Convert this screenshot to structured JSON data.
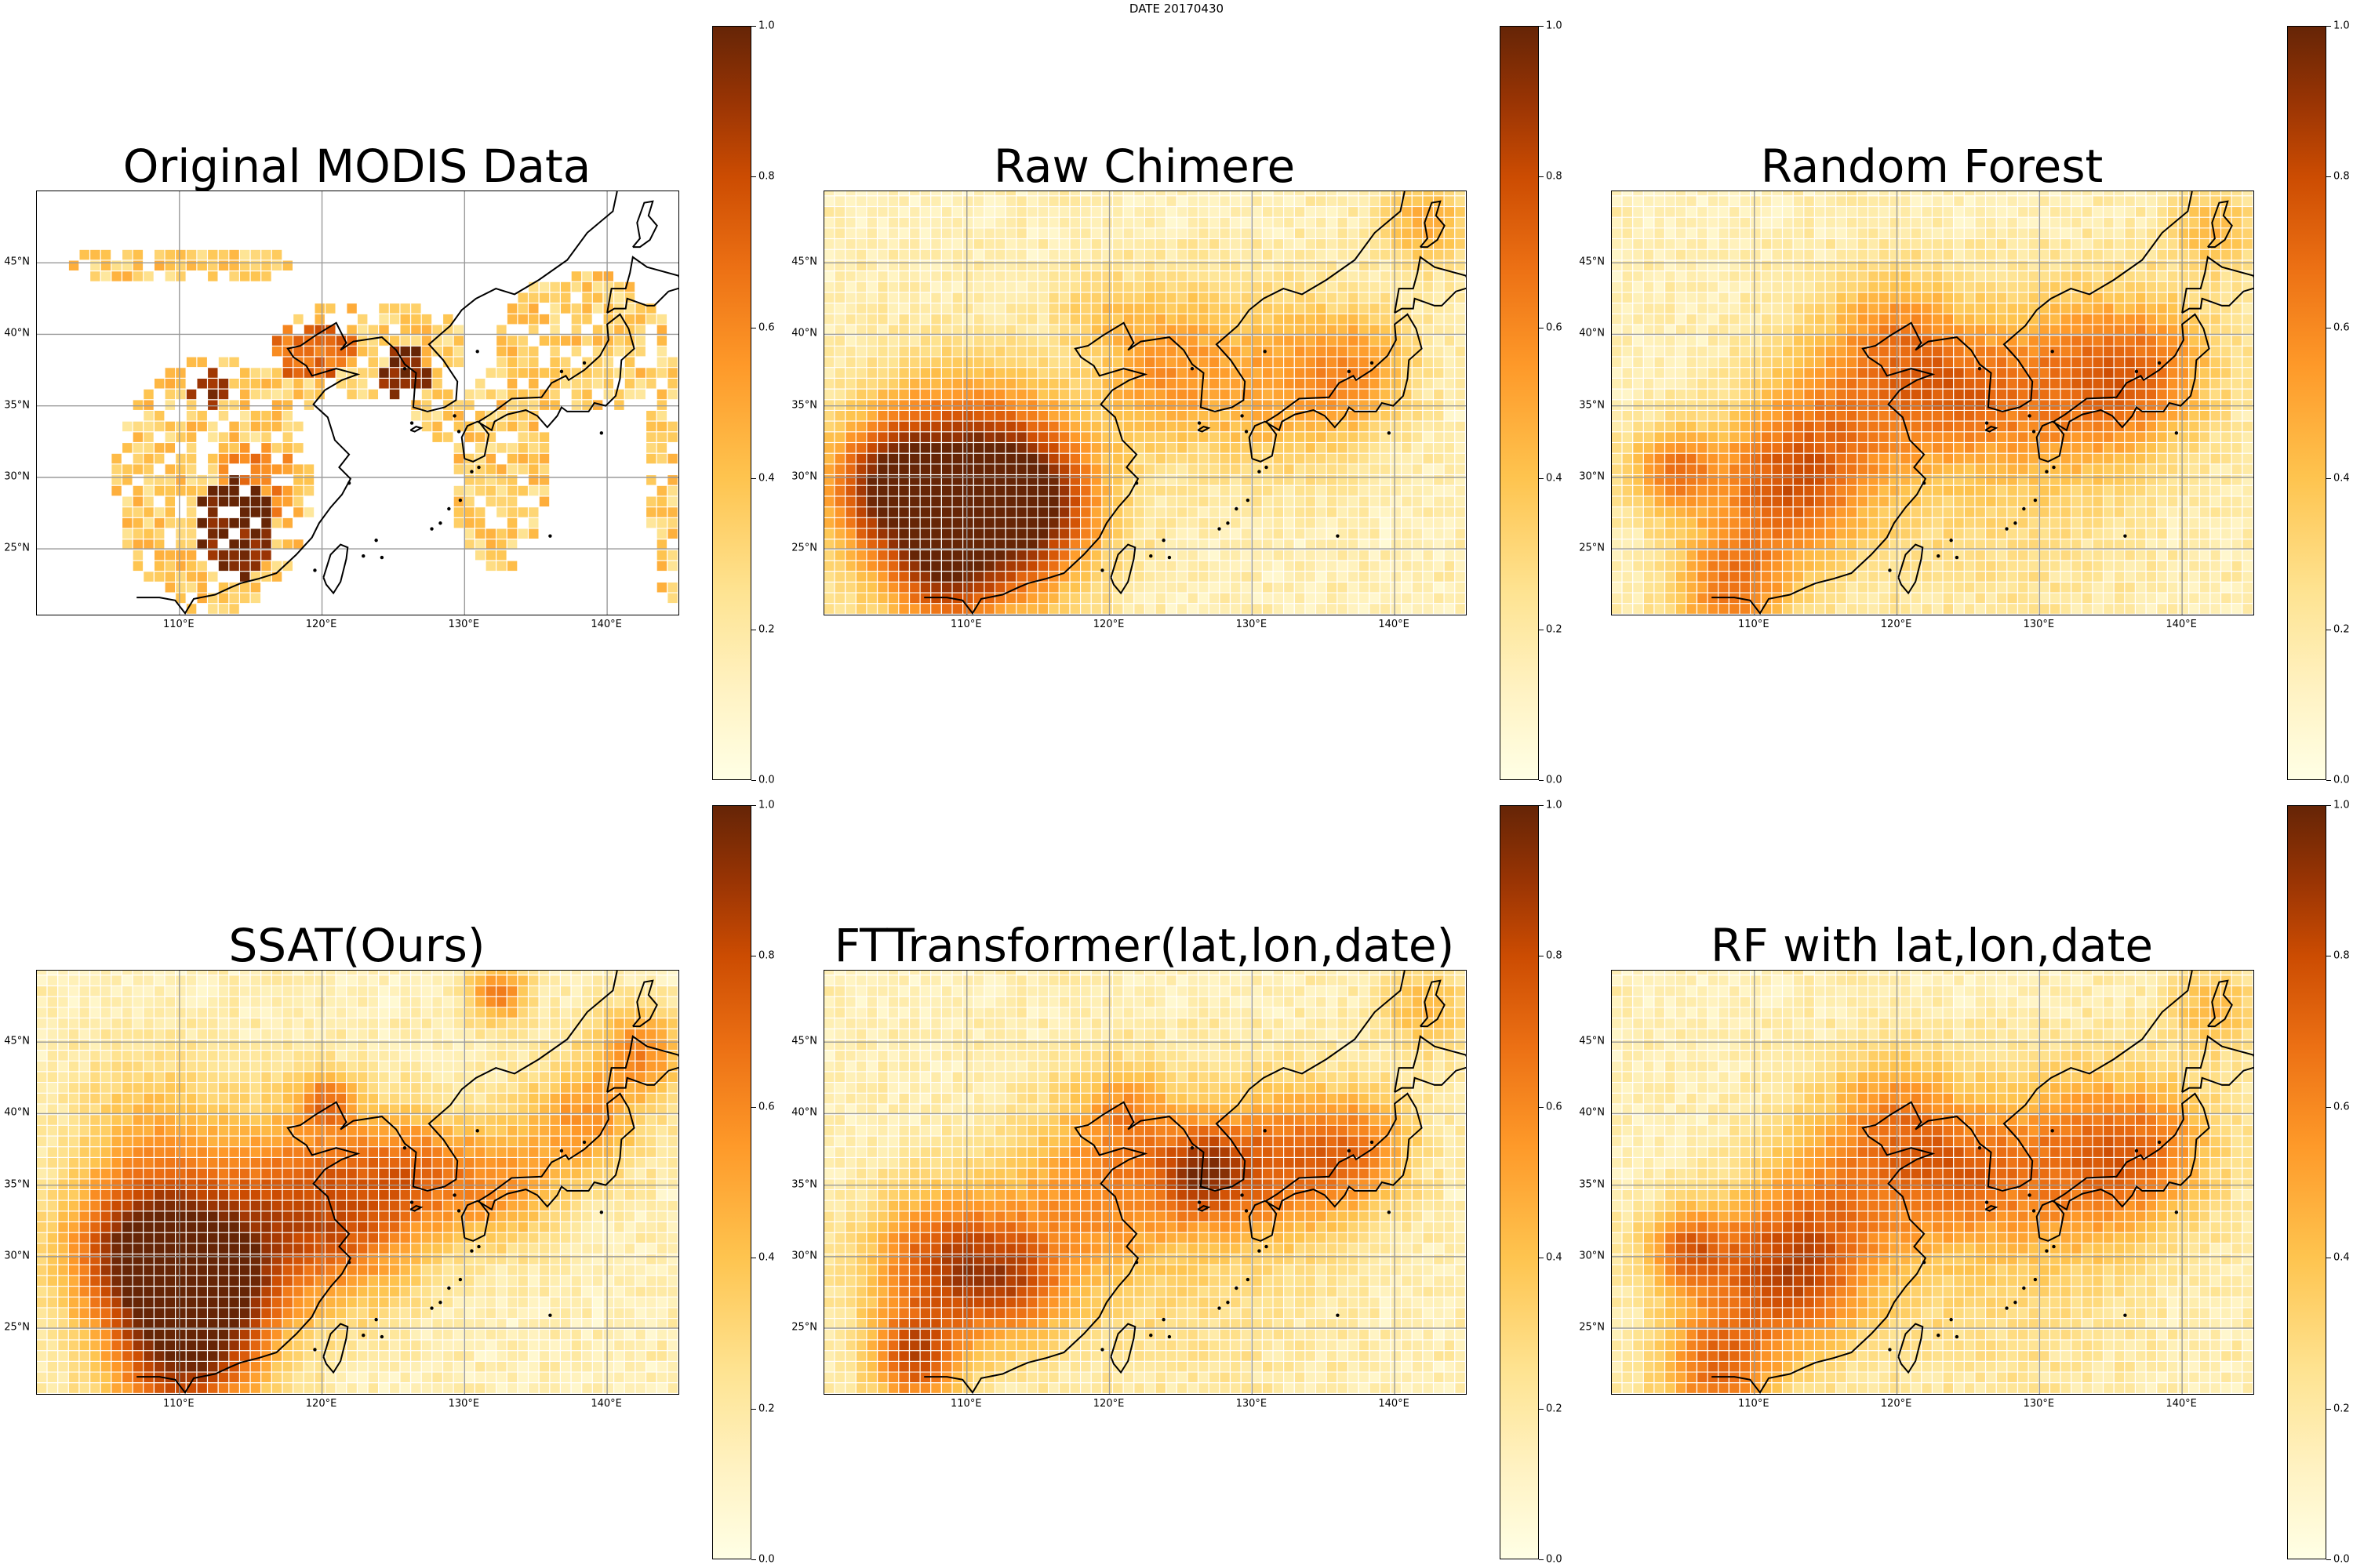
{
  "figure": {
    "suptitle": "DATE 20170430"
  },
  "panels": [
    {
      "title": "Original MODIS Data",
      "map": "modis"
    },
    {
      "title": "Raw Chimere",
      "map": "chimere"
    },
    {
      "title": "Random Forest",
      "map": "rf"
    },
    {
      "title": "SSAT(Ours)",
      "map": "ssat"
    },
    {
      "title": "FTTransformer(lat,lon,date)",
      "map": "ftt"
    },
    {
      "title": "RF with lat,lon,date",
      "map": "rflld"
    }
  ],
  "axes": {
    "lat_ticks": [
      "45°N",
      "40°N",
      "35°N",
      "30°N",
      "25°N"
    ],
    "lat_values": [
      45,
      40,
      35,
      30,
      25
    ],
    "lon_ticks": [
      "110°E",
      "120°E",
      "130°E",
      "140°E"
    ],
    "lon_values": [
      110,
      120,
      130,
      140
    ],
    "extent": {
      "lon": [
        100,
        145
      ],
      "lat": [
        20.4,
        50
      ]
    }
  },
  "colorbar": {
    "ticks": [
      "1.0",
      "0.8",
      "0.6",
      "0.4",
      "0.2",
      "0.0"
    ],
    "values": [
      1.0,
      0.8,
      0.6,
      0.4,
      0.2,
      0.0
    ],
    "colormap": "YlOrBr",
    "colors": [
      "#ffffe5",
      "#fee391",
      "#fec44f",
      "#fe9929",
      "#ec7014",
      "#cc4c02",
      "#993404",
      "#662506"
    ]
  }
}
